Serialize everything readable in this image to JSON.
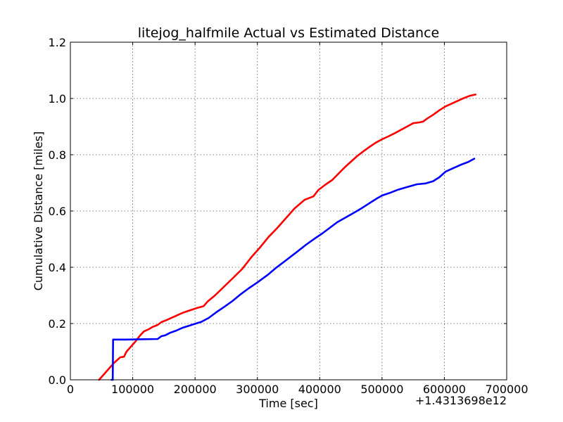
{
  "chart_data": {
    "type": "line",
    "title": "litejog_halfmile Actual vs Estimated Distance",
    "xlabel": "Time [sec]",
    "ylabel": "Cumulative Distance [miles]",
    "x_offset_label": "+1.4313698e12",
    "xlim": [
      0,
      700000
    ],
    "ylim": [
      0,
      1.2
    ],
    "xticks": [
      0,
      100000,
      200000,
      300000,
      400000,
      500000,
      600000,
      700000
    ],
    "xtick_labels": [
      "0",
      "100000",
      "200000",
      "300000",
      "400000",
      "500000",
      "600000",
      "700000"
    ],
    "yticks": [
      0.0,
      0.2,
      0.4,
      0.6,
      0.8,
      1.0,
      1.2
    ],
    "ytick_labels": [
      "0.0",
      "0.2",
      "0.4",
      "0.6",
      "0.8",
      "1.0",
      "1.2"
    ],
    "grid": true,
    "series": [
      {
        "color": "#ff0000",
        "x": [
          46000,
          52000,
          60000,
          70000,
          80000,
          86000,
          90000,
          96000,
          104000,
          112000,
          118000,
          126000,
          132000,
          140000,
          146000,
          154000,
          160000,
          170000,
          180000,
          188000,
          196000,
          204000,
          214000,
          220000,
          232000,
          246000,
          260000,
          276000,
          290000,
          304000,
          318000,
          332000,
          346000,
          360000,
          376000,
          390000,
          398000,
          410000,
          420000,
          440000,
          460000,
          470000,
          480000,
          490000,
          500000,
          510000,
          520000,
          530000,
          540000,
          550000,
          560000,
          566000,
          572000,
          582000,
          592000,
          602000,
          612000,
          622000,
          632000,
          640000,
          650000
        ],
        "values": [
          0.0,
          0.015,
          0.035,
          0.06,
          0.08,
          0.082,
          0.1,
          0.115,
          0.135,
          0.158,
          0.172,
          0.18,
          0.188,
          0.195,
          0.205,
          0.212,
          0.218,
          0.228,
          0.238,
          0.244,
          0.25,
          0.256,
          0.262,
          0.278,
          0.3,
          0.33,
          0.36,
          0.395,
          0.435,
          0.47,
          0.508,
          0.54,
          0.575,
          0.61,
          0.64,
          0.652,
          0.675,
          0.695,
          0.71,
          0.755,
          0.795,
          0.812,
          0.828,
          0.843,
          0.855,
          0.865,
          0.876,
          0.888,
          0.9,
          0.912,
          0.915,
          0.918,
          0.928,
          0.942,
          0.958,
          0.972,
          0.982,
          0.992,
          1.002,
          1.009,
          1.014
        ]
      },
      {
        "color": "#0000ff",
        "x": [
          66000,
          68000,
          68500,
          90000,
          110000,
          140000,
          146000,
          152000,
          160000,
          170000,
          180000,
          190000,
          200000,
          210000,
          222000,
          234000,
          246000,
          260000,
          272000,
          286000,
          300000,
          316000,
          330000,
          346000,
          362000,
          378000,
          392000,
          404000,
          416000,
          428000,
          440000,
          452000,
          466000,
          480000,
          492000,
          500000,
          512000,
          526000,
          540000,
          556000,
          570000,
          582000,
          592000,
          602000,
          614000,
          626000,
          638000,
          648000
        ],
        "values": [
          0.0,
          0.0,
          0.143,
          0.143,
          0.144,
          0.145,
          0.155,
          0.158,
          0.167,
          0.175,
          0.185,
          0.192,
          0.199,
          0.206,
          0.22,
          0.24,
          0.258,
          0.28,
          0.302,
          0.325,
          0.346,
          0.372,
          0.398,
          0.425,
          0.452,
          0.48,
          0.502,
          0.52,
          0.54,
          0.56,
          0.575,
          0.59,
          0.608,
          0.628,
          0.645,
          0.655,
          0.664,
          0.676,
          0.685,
          0.695,
          0.698,
          0.706,
          0.72,
          0.74,
          0.752,
          0.764,
          0.774,
          0.786
        ]
      }
    ]
  }
}
